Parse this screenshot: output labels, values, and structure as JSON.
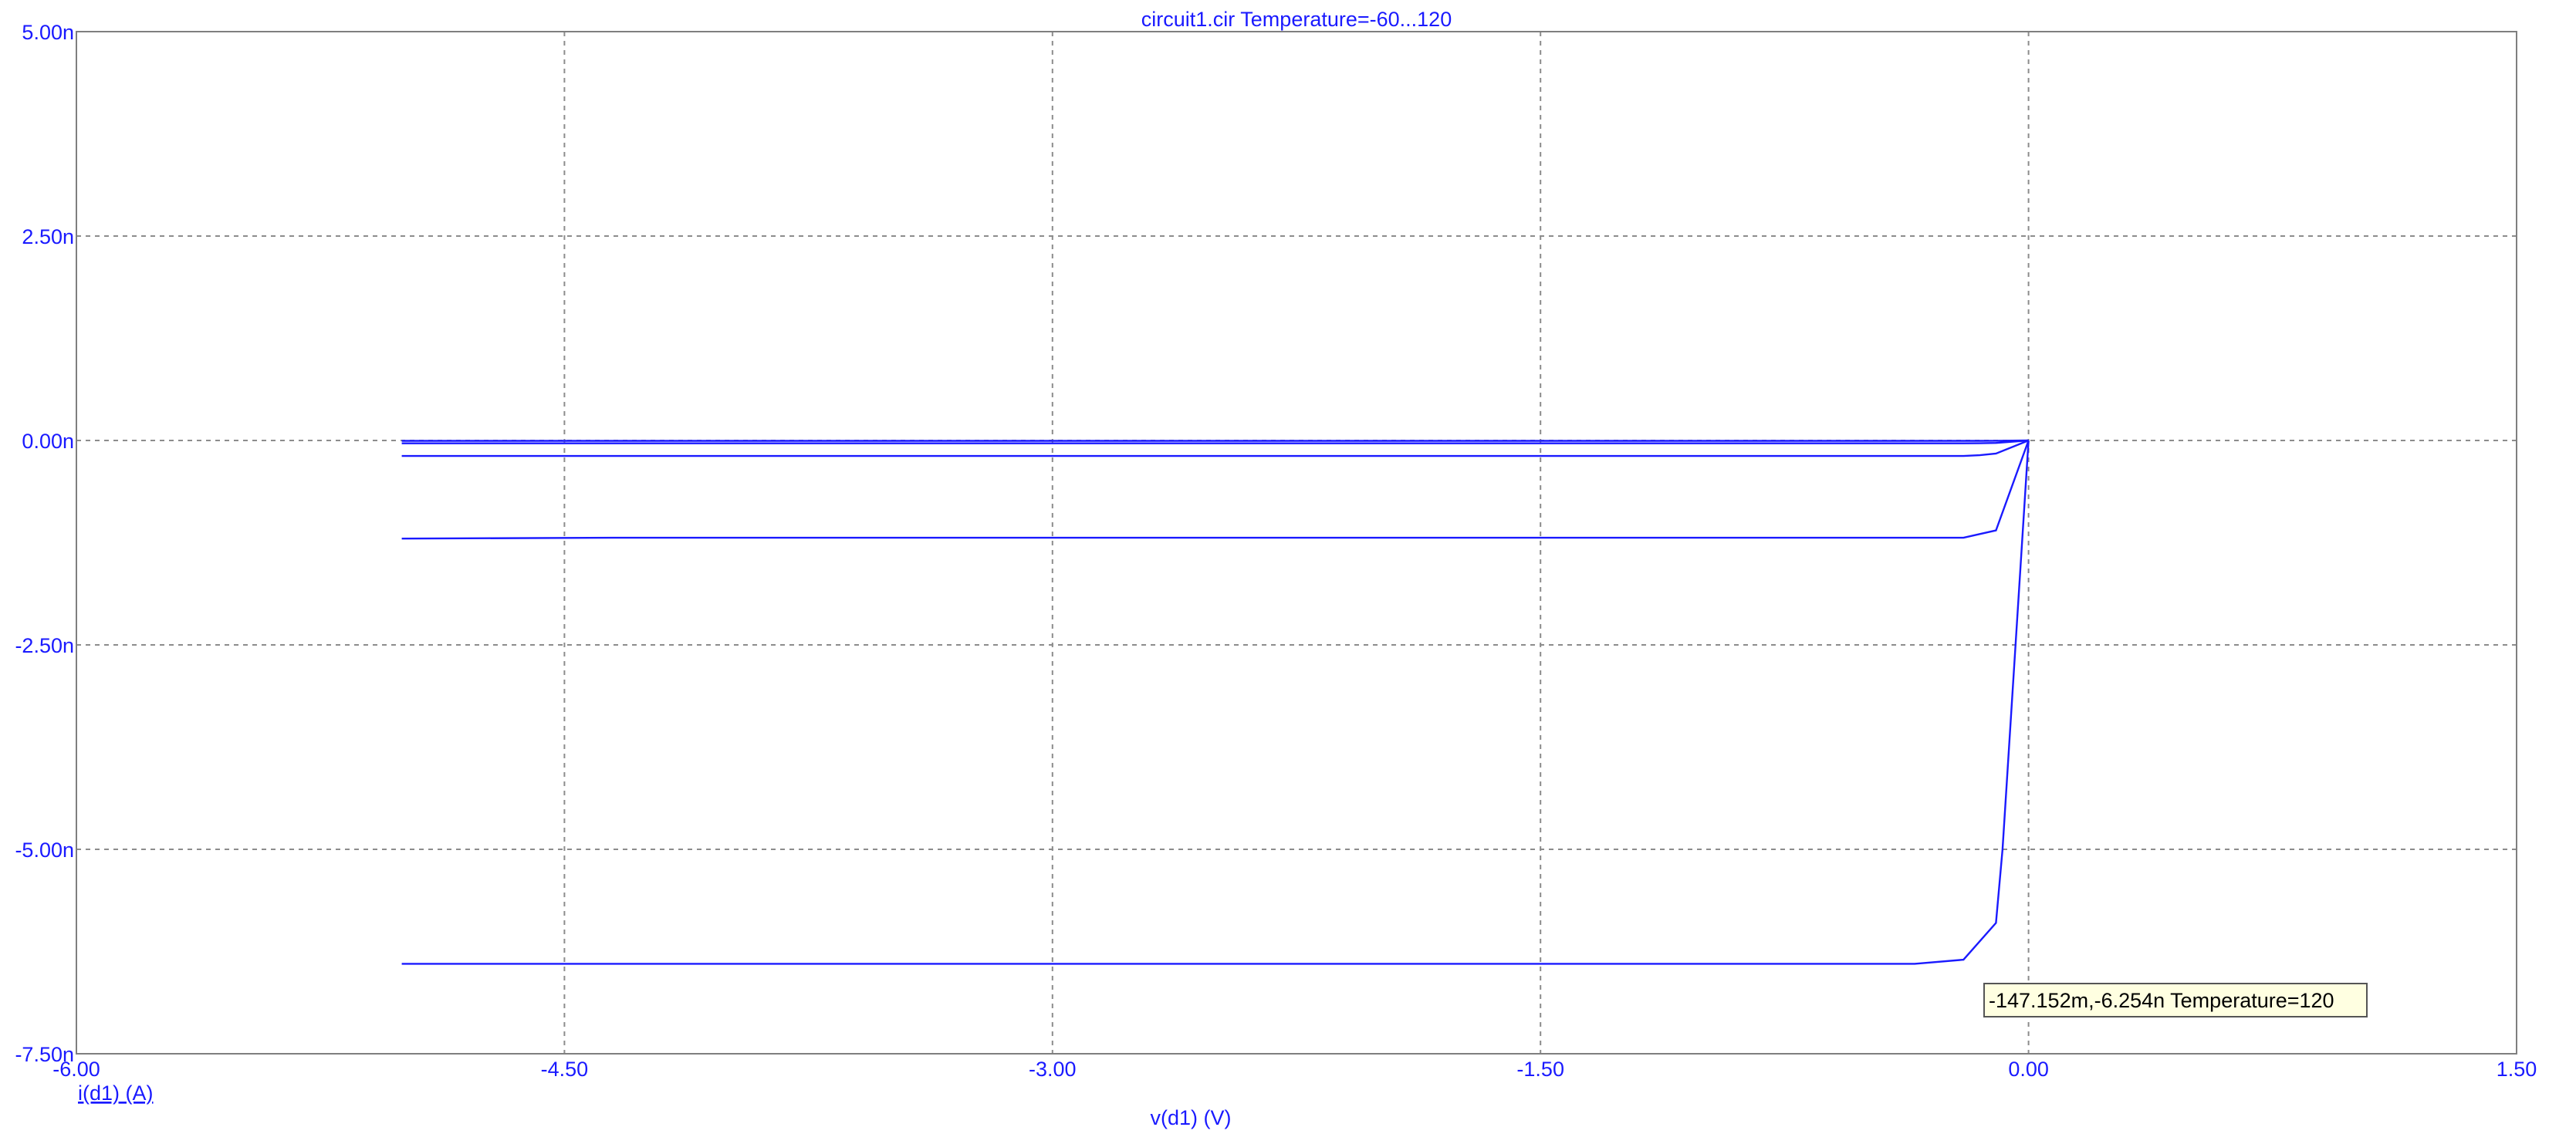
{
  "chart_data": {
    "type": "line",
    "title": "circuit1.cir Temperature=-60...120",
    "xlabel": "v(d1) (V)",
    "ylabel": "i(d1) (A)",
    "xlim": [
      -6.0,
      1.5
    ],
    "ylim": [
      -7.5e-09,
      5e-09
    ],
    "grid": true,
    "x_ticks": [
      {
        "value": -6.0,
        "label": "-6.00"
      },
      {
        "value": -4.5,
        "label": "-4.50"
      },
      {
        "value": -3.0,
        "label": "-3.00"
      },
      {
        "value": -1.5,
        "label": "-1.50"
      },
      {
        "value": 0.0,
        "label": "0.00"
      },
      {
        "value": 1.5,
        "label": "1.50"
      }
    ],
    "y_ticks": [
      {
        "value": 5e-09,
        "label": "5.00n"
      },
      {
        "value": 2.5e-09,
        "label": "2.50n"
      },
      {
        "value": 0.0,
        "label": "0.00n"
      },
      {
        "value": -2.5e-09,
        "label": "-2.50n"
      },
      {
        "value": -5e-09,
        "label": "-5.00n"
      },
      {
        "value": -7.5e-09,
        "label": "-7.50n"
      }
    ],
    "color": "#1a1aff",
    "series": [
      {
        "x": [
          -5.0,
          -0.2,
          -0.15,
          -0.1,
          0.0
        ],
        "y": [
          -5e-12,
          -5e-12,
          -5e-12,
          -4e-12,
          0.0
        ]
      },
      {
        "x": [
          -5.0,
          -0.2,
          -0.15,
          -0.1,
          0.0
        ],
        "y": [
          -3.5e-11,
          -3.5e-11,
          -3.4e-11,
          -3e-11,
          0.0
        ]
      },
      {
        "x": [
          -5.0,
          -0.2,
          -0.15,
          -0.1,
          0.0
        ],
        "y": [
          -1.9e-10,
          -1.9e-10,
          -1.8e-10,
          -1.6e-10,
          0.0
        ]
      },
      {
        "x": [
          -5.0,
          -4.35,
          -0.2,
          -0.1,
          0.0
        ],
        "y": [
          -1.2e-09,
          -1.19e-09,
          -1.19e-09,
          -1.1e-09,
          0.0
        ]
      },
      {
        "x": [
          -5.0,
          -0.35,
          -0.2,
          -0.1,
          -0.08,
          0.0
        ],
        "y": [
          -6.4e-09,
          -6.4e-09,
          -6.35e-09,
          -5.9e-09,
          -5e-09,
          0.0
        ]
      }
    ],
    "cursor": {
      "x": -0.147152,
      "y": -6.254e-09,
      "label": "-147.152m,-6.254n Temperature=120"
    }
  }
}
